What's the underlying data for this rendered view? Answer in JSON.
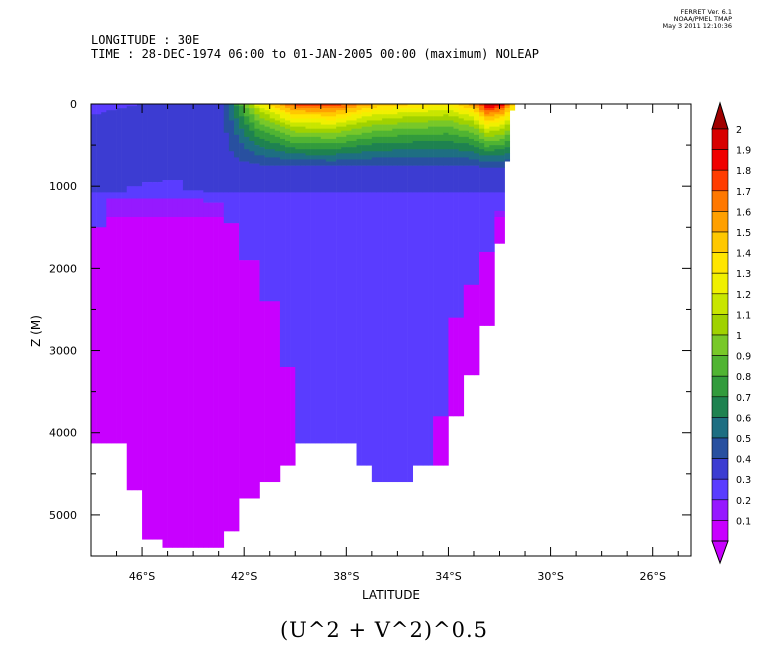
{
  "header": {
    "line1": "LONGITUDE : 30E",
    "line2": "TIME : 28-DEC-1974 06:00 to 01-JAN-2005 00:00 (maximum) NOLEAP"
  },
  "meta": {
    "line1": "FERRET Ver. 6.1",
    "line2": "NOAA/PMEL TMAP",
    "line3": "May  3 2011 12:10:36"
  },
  "chart_data": {
    "type": "heatmap",
    "title": "(U^2 + V^2)^0.5",
    "xlabel": "LATITUDE",
    "ylabel": "Z (M)",
    "xlim": [
      -48,
      -24.5
    ],
    "ylim": [
      5500,
      0
    ],
    "x_ticks": [
      -46,
      -42,
      -38,
      -34,
      -30,
      -26
    ],
    "x_tick_labels": [
      "46°S",
      "42°S",
      "38°S",
      "34°S",
      "30°S",
      "26°S"
    ],
    "y_ticks": [
      0,
      1000,
      2000,
      3000,
      4000,
      5000
    ],
    "y_tick_labels": [
      "0",
      "1000",
      "2000",
      "3000",
      "4000",
      "5000"
    ],
    "colorbar": {
      "levels": [
        "2",
        "1.9",
        "1.8",
        "1.7",
        "1.6",
        "1.5",
        "1.4",
        "1.3",
        "1.2",
        "1.1",
        "1",
        "0.9",
        "0.8",
        "0.7",
        "0.6",
        "0.5",
        "0.4",
        "0.3",
        "0.2",
        "0.1"
      ],
      "colors": [
        "#d80000",
        "#f00000",
        "#ff3c00",
        "#ff7800",
        "#ffa000",
        "#ffc800",
        "#ffe600",
        "#f0f000",
        "#c8e600",
        "#a0d200",
        "#78c828",
        "#50b432",
        "#329b3c",
        "#1e8250",
        "#1e6e82",
        "#2850a0",
        "#3c3cd2",
        "#5a3cff",
        "#9619ff",
        "#c800ff"
      ],
      "over_color": "#a00000",
      "under_color": "#c800ff"
    },
    "profiles": [
      {
        "lat": -47.8,
        "bottom": 4130,
        "core_top": 1500
      },
      {
        "lat": -47.0,
        "bottom": 4130,
        "core_top": 1150
      },
      {
        "lat": -46.3,
        "bottom": 4700,
        "core_top": 1000
      },
      {
        "lat": -45.5,
        "bottom": 5300,
        "core_top": 950
      },
      {
        "lat": -44.8,
        "bottom": 5400,
        "core_top": 900
      },
      {
        "lat": -44.0,
        "bottom": 5400,
        "core_top": 1050
      },
      {
        "lat": -43.2,
        "bottom": 5400,
        "core_top": 1200
      },
      {
        "lat": -42.5,
        "bottom": 5200,
        "core_top": 1450
      },
      {
        "lat": -41.8,
        "bottom": 4800,
        "core_top": 1900
      },
      {
        "lat": -41.0,
        "bottom": 4600,
        "core_top": 2400
      },
      {
        "lat": -40.3,
        "bottom": 4400,
        "core_top": 3200
      },
      {
        "lat": -39.5,
        "bottom": 4130,
        "core_top": 9999
      },
      {
        "lat": -38.7,
        "bottom": 4130,
        "core_top": 9999
      },
      {
        "lat": -38.0,
        "bottom": 4130,
        "core_top": 9999
      },
      {
        "lat": -37.3,
        "bottom": 4400,
        "core_top": 9999
      },
      {
        "lat": -36.5,
        "bottom": 4600,
        "core_top": 9999
      },
      {
        "lat": -35.8,
        "bottom": 4600,
        "core_top": 9999
      },
      {
        "lat": -35.0,
        "bottom": 4400,
        "core_top": 9999
      },
      {
        "lat": -34.3,
        "bottom": 4400,
        "core_top": 3800
      },
      {
        "lat": -33.6,
        "bottom": 3800,
        "core_top": 2600
      },
      {
        "lat": -33.0,
        "bottom": 3300,
        "core_top": 2200
      },
      {
        "lat": -32.4,
        "bottom": 2700,
        "core_top": 1800
      },
      {
        "lat": -32.0,
        "bottom": 1700,
        "core_top": 1300
      },
      {
        "lat": -31.7,
        "bottom": 700,
        "core_top": 9999
      },
      {
        "lat": -31.5,
        "bottom": 80,
        "core_top": 9999
      }
    ],
    "surface_speed": [
      {
        "lat": -48.0,
        "value": 0.28
      },
      {
        "lat": -44.0,
        "value": 0.32
      },
      {
        "lat": -42.8,
        "value": 0.4
      },
      {
        "lat": -41.5,
        "value": 1.25
      },
      {
        "lat": -40.0,
        "value": 1.8
      },
      {
        "lat": -38.5,
        "value": 1.85
      },
      {
        "lat": -37.0,
        "value": 1.55
      },
      {
        "lat": -35.5,
        "value": 1.45
      },
      {
        "lat": -34.0,
        "value": 1.4
      },
      {
        "lat": -33.0,
        "value": 1.6
      },
      {
        "lat": -32.5,
        "value": 2.05
      },
      {
        "lat": -31.9,
        "value": 1.9
      },
      {
        "lat": -31.5,
        "value": 1.5
      }
    ],
    "surface_jet_depth_m": 800
  }
}
